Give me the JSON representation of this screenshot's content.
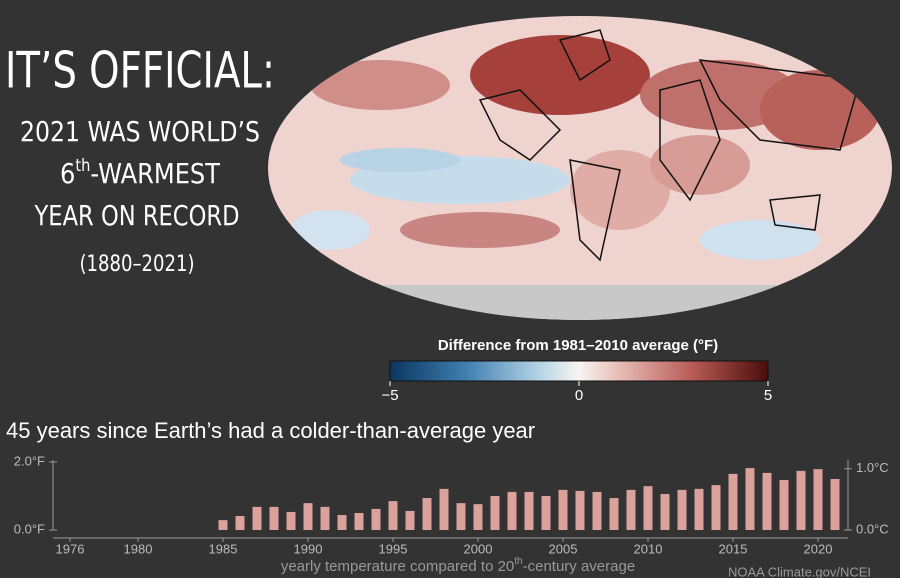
{
  "headline": {
    "line1": "IT’S OFFICIAL:",
    "line2": "2021 WAS WORLD’S",
    "line3": [
      "6",
      "th",
      "-WARMEST"
    ],
    "line4": "YEAR ON RECORD",
    "line5": "(1880–2021)"
  },
  "map": {
    "colorbar_title": "Difference from 1981–2010 average (°F)",
    "colorbar_lim": [
      -5,
      5
    ],
    "colorbar_ticks": [
      {
        "value": -5,
        "label": "−5"
      },
      0,
      5
    ]
  },
  "chart_data": {
    "type": "bar",
    "title": "45 years since Earth’s had a colder-than-average year",
    "x_label": [
      "yearly temperature compared to 20",
      "th",
      "-century average"
    ],
    "x": [
      1985,
      1986,
      1987,
      1988,
      1989,
      1990,
      1991,
      1992,
      1993,
      1994,
      1995,
      1996,
      1997,
      1998,
      1999,
      2000,
      2001,
      2002,
      2003,
      2004,
      2005,
      2006,
      2007,
      2008,
      2009,
      2010,
      2011,
      2012,
      2013,
      2014,
      2015,
      2016,
      2017,
      2018,
      2019,
      2020,
      2021
    ],
    "values": [
      0.29,
      0.41,
      0.68,
      0.68,
      0.53,
      0.79,
      0.68,
      0.44,
      0.5,
      0.62,
      0.85,
      0.56,
      0.94,
      1.21,
      0.79,
      0.76,
      1.0,
      1.12,
      1.12,
      1.0,
      1.18,
      1.15,
      1.12,
      0.94,
      1.18,
      1.29,
      1.06,
      1.18,
      1.21,
      1.32,
      1.65,
      1.82,
      1.68,
      1.47,
      1.74,
      1.79,
      1.5
    ],
    "color": "#dba19b",
    "xlim": [
      1975,
      2022
    ],
    "xticks": [
      1976,
      1980,
      1985,
      1990,
      1995,
      2000,
      2005,
      2010,
      2015,
      2020
    ],
    "ylim": [
      0,
      2
    ],
    "yticks": [
      {
        "value": 0,
        "label": "0.0°F"
      },
      {
        "value": 2,
        "label": "2.0°F"
      }
    ],
    "y2lim": [
      0,
      1.11
    ],
    "y2ticks": [
      {
        "value": 0,
        "label": "0.0°C"
      },
      {
        "value": 1,
        "label": "1.0°C"
      }
    ],
    "credit": "NOAA Climate.gov/NCEI"
  }
}
